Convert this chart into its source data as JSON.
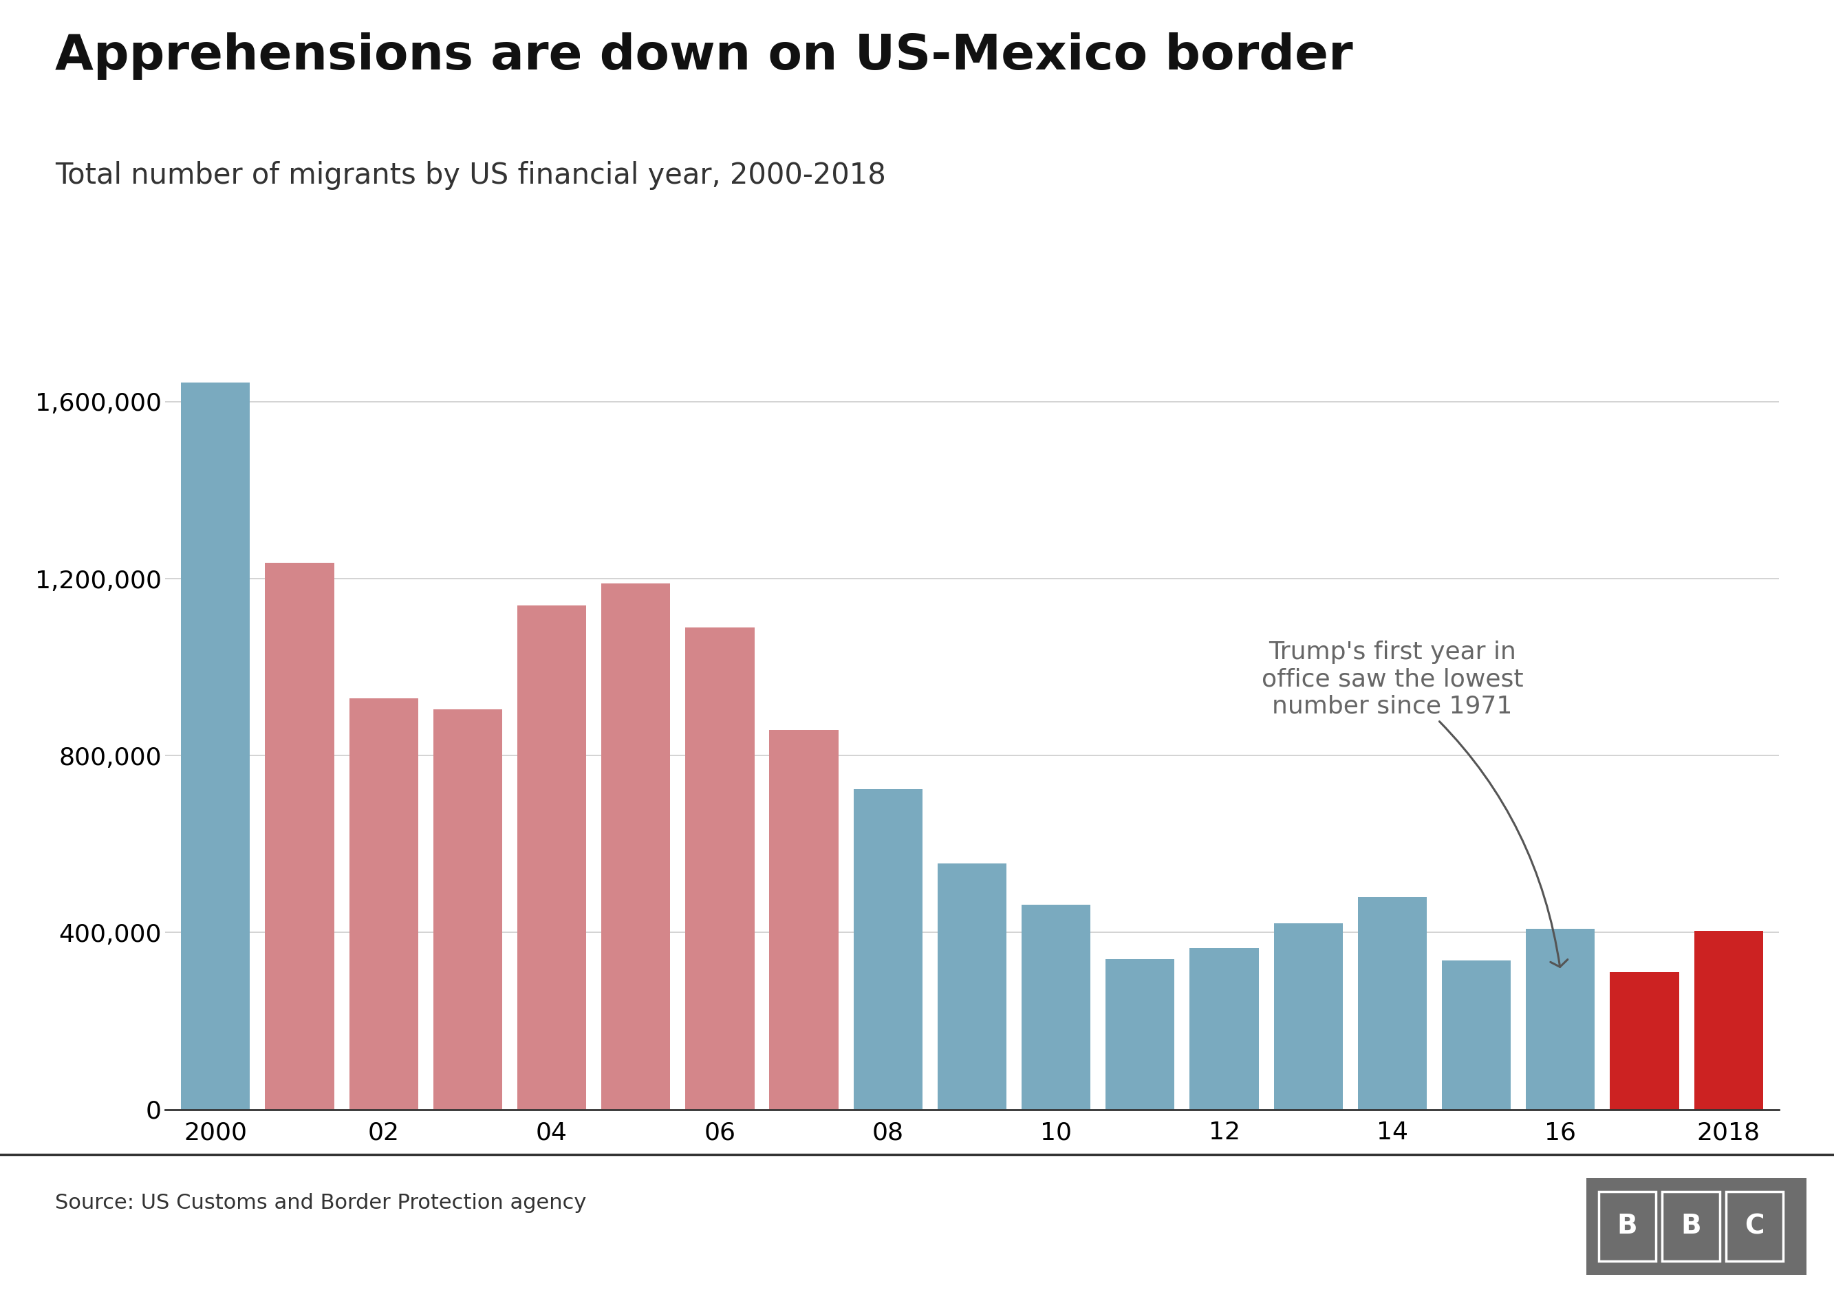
{
  "title": "Apprehensions are down on US-Mexico border",
  "subtitle": "Total number of migrants by US financial year, 2000-2018",
  "source": "Source: US Customs and Border Protection agency",
  "years": [
    2000,
    2001,
    2002,
    2003,
    2004,
    2005,
    2006,
    2007,
    2008,
    2009,
    2010,
    2011,
    2012,
    2013,
    2014,
    2015,
    2016,
    2017,
    2018
  ],
  "values": [
    1643679,
    1235718,
    929809,
    905065,
    1139282,
    1189057,
    1089092,
    858638,
    723825,
    556041,
    463382,
    340252,
    364768,
    420789,
    479371,
    337117,
    408870,
    310531,
    404142
  ],
  "bar_colors": [
    "#7aaabf",
    "#d4868a",
    "#d4868a",
    "#d4868a",
    "#d4868a",
    "#d4868a",
    "#d4868a",
    "#d4868a",
    "#7aaabf",
    "#7aaabf",
    "#7aaabf",
    "#7aaabf",
    "#7aaabf",
    "#7aaabf",
    "#7aaabf",
    "#7aaabf",
    "#7aaabf",
    "#cc2222",
    "#cc2222"
  ],
  "annotation_text": "Trump's first year in\noffice saw the lowest\nnumber since 1971",
  "annotation_color": "#666666",
  "yticks": [
    0,
    400000,
    800000,
    1200000,
    1600000
  ],
  "ytick_labels": [
    "0",
    "400,000",
    "800,000",
    "1,200,000",
    "1,600,000"
  ],
  "xtick_positions": [
    0,
    2,
    4,
    6,
    8,
    10,
    12,
    14,
    16,
    18
  ],
  "xtick_labels": [
    "2000",
    "02",
    "04",
    "06",
    "08",
    "10",
    "12",
    "14",
    "16",
    "2018"
  ],
  "background_color": "#ffffff",
  "title_fontsize": 52,
  "subtitle_fontsize": 30,
  "source_fontsize": 22,
  "tick_fontsize": 26,
  "annotation_fontsize": 26,
  "bbc_color": "#6d6d6d"
}
